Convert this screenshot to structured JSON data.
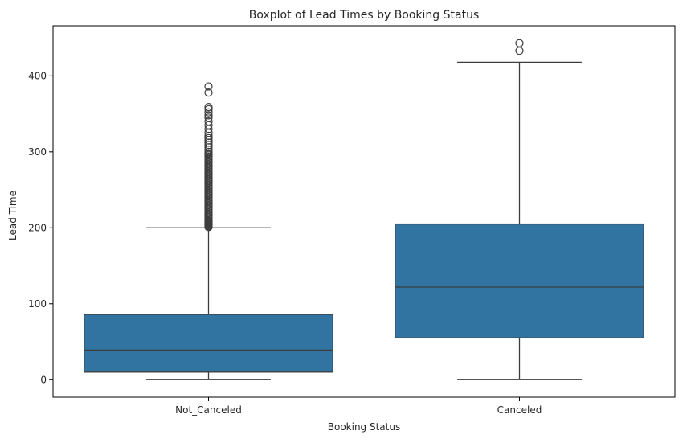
{
  "chart_data": {
    "type": "boxplot",
    "title": "Boxplot of Lead Times by Booking Status",
    "xlabel": "Booking Status",
    "ylabel": "Lead Time",
    "ylim": [
      -23,
      466
    ],
    "yticks": [
      0,
      100,
      200,
      300,
      400
    ],
    "grid": false,
    "box_color": "#3274a1",
    "line_color": "#3d3d3d",
    "categories": [
      "Not_Canceled",
      "Canceled"
    ],
    "boxes": [
      {
        "category": "Not_Canceled",
        "whisker_low": 0,
        "q1": 10,
        "median": 39,
        "q3": 86,
        "whisker_high": 200,
        "outliers": [
          201,
          202,
          203,
          204,
          205,
          206,
          207,
          208,
          209,
          210,
          212,
          214,
          216,
          218,
          220,
          222,
          224,
          226,
          228,
          230,
          232,
          234,
          236,
          238,
          240,
          242,
          244,
          246,
          248,
          250,
          252,
          254,
          256,
          258,
          260,
          262,
          264,
          266,
          268,
          270,
          272,
          274,
          276,
          278,
          280,
          282,
          284,
          286,
          288,
          290,
          292,
          294,
          296,
          298,
          300,
          303,
          306,
          309,
          312,
          315,
          318,
          321,
          325,
          330,
          335,
          340,
          345,
          348,
          352,
          356,
          359,
          378,
          386
        ]
      },
      {
        "category": "Canceled",
        "whisker_low": 0,
        "q1": 55,
        "median": 122,
        "q3": 205,
        "whisker_high": 418,
        "outliers": [
          433,
          443
        ]
      }
    ]
  }
}
